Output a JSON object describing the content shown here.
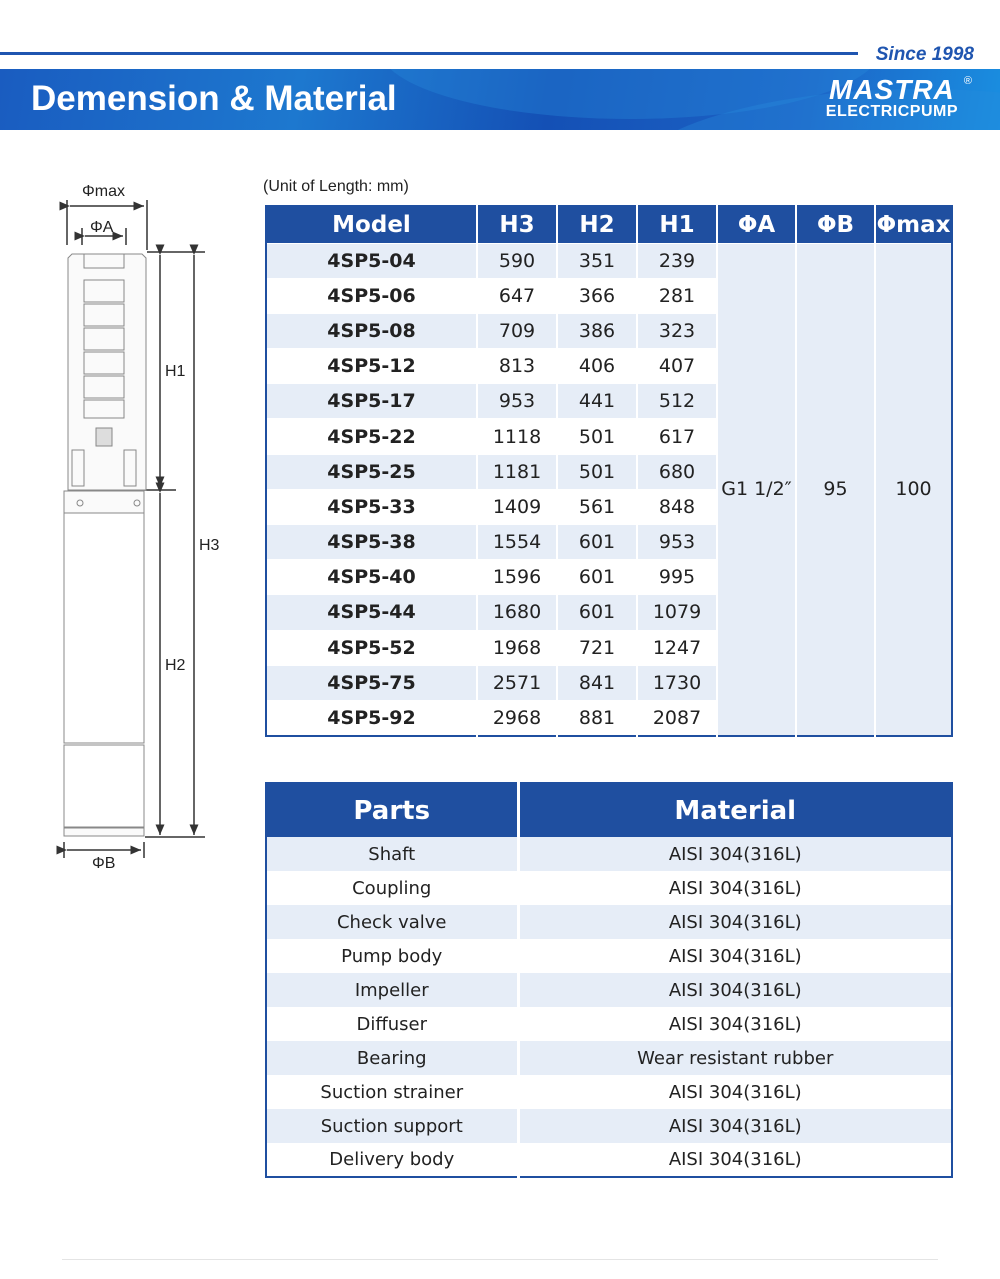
{
  "header": {
    "since": "Since 1998",
    "title": "Demension & Material",
    "logo_mark": "MASTRA",
    "logo_sub": "ELECTRICPUMP",
    "logo_reg": "®"
  },
  "diagram": {
    "phi_max": "Φmax",
    "phi_a": "ΦA",
    "phi_b": "ΦB",
    "h1": "H1",
    "h2": "H2",
    "h3": "H3"
  },
  "dimensions": {
    "unit_note": "(Unit of Length: mm)",
    "headers": [
      "Model",
      "H3",
      "H2",
      "H1",
      "ΦA",
      "ΦB",
      "Φmax"
    ],
    "rows": [
      [
        "4SP5-04",
        "590",
        "351",
        "239"
      ],
      [
        "4SP5-06",
        "647",
        "366",
        "281"
      ],
      [
        "4SP5-08",
        "709",
        "386",
        "323"
      ],
      [
        "4SP5-12",
        "813",
        "406",
        "407"
      ],
      [
        "4SP5-17",
        "953",
        "441",
        "512"
      ],
      [
        "4SP5-22",
        "1118",
        "501",
        "617"
      ],
      [
        "4SP5-25",
        "1181",
        "501",
        "680"
      ],
      [
        "4SP5-33",
        "1409",
        "561",
        "848"
      ],
      [
        "4SP5-38",
        "1554",
        "601",
        "953"
      ],
      [
        "4SP5-40",
        "1596",
        "601",
        "995"
      ],
      [
        "4SP5-44",
        "1680",
        "601",
        "1079"
      ],
      [
        "4SP5-52",
        "1968",
        "721",
        "1247"
      ],
      [
        "4SP5-75",
        "2571",
        "841",
        "1730"
      ],
      [
        "4SP5-92",
        "2968",
        "881",
        "2087"
      ]
    ],
    "shared": {
      "phi_a": "G1 1/2″",
      "phi_b": "95",
      "phi_max": "100"
    }
  },
  "materials": {
    "headers": [
      "Parts",
      "Material"
    ],
    "rows": [
      [
        "Shaft",
        "AISI 304(316L)"
      ],
      [
        "Coupling",
        "AISI 304(316L)"
      ],
      [
        "Check valve",
        "AISI 304(316L)"
      ],
      [
        "Pump body",
        "AISI 304(316L)"
      ],
      [
        "Impeller",
        "AISI 304(316L)"
      ],
      [
        "Diffuser",
        "AISI 304(316L)"
      ],
      [
        "Bearing",
        "Wear resistant rubber"
      ],
      [
        "Suction strainer",
        "AISI 304(316L)"
      ],
      [
        "Suction support",
        "AISI 304(316L)"
      ],
      [
        "Delivery body",
        "AISI 304(316L)"
      ]
    ]
  },
  "colors": {
    "brand": "#1f4fa0",
    "row_alt": "#e6edf7"
  }
}
